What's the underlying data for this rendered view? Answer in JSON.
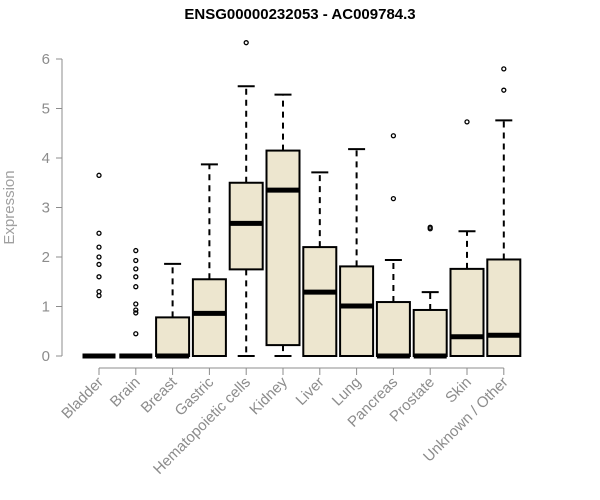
{
  "chart_data": {
    "type": "box",
    "title": "ENSG00000232053 - AC009784.3",
    "ylabel": "Expression",
    "xlabel": "",
    "ylim": [
      0,
      6
    ],
    "yticks": [
      0,
      1,
      2,
      3,
      4,
      5,
      6
    ],
    "grid": false,
    "colors": {
      "box_fill": "#ede6cf",
      "stroke": "#000000",
      "axis": "#8c8c8c"
    },
    "boxes": [
      {
        "category": "Bladder",
        "whisker_low": 0,
        "q1": 0,
        "median": 0,
        "q3": 0,
        "whisker_high": 0,
        "outliers": [
          3.65,
          2.48,
          2.2,
          2.0,
          1.85,
          1.6,
          1.3,
          1.22
        ]
      },
      {
        "category": "Brain",
        "whisker_low": 0,
        "q1": 0,
        "median": 0,
        "q3": 0,
        "whisker_high": 0,
        "outliers": [
          2.13,
          1.93,
          1.76,
          1.6,
          1.4,
          1.05,
          0.93,
          0.87,
          0.45
        ]
      },
      {
        "category": "Breast",
        "whisker_low": 0,
        "q1": 0,
        "median": 0,
        "q3": 0.78,
        "whisker_high": 1.86,
        "outliers": []
      },
      {
        "category": "Gastric",
        "whisker_low": 0,
        "q1": 0,
        "median": 0.86,
        "q3": 1.55,
        "whisker_high": 3.87,
        "outliers": []
      },
      {
        "category": "Hematopoietic cells",
        "whisker_low": 0,
        "q1": 1.75,
        "median": 2.68,
        "q3": 3.5,
        "whisker_high": 5.45,
        "outliers": [
          6.33
        ]
      },
      {
        "category": "Kidney",
        "whisker_low": 0,
        "q1": 0.22,
        "median": 3.35,
        "q3": 4.15,
        "whisker_high": 5.28,
        "outliers": []
      },
      {
        "category": "Liver",
        "whisker_low": 0,
        "q1": 0,
        "median": 1.29,
        "q3": 2.2,
        "whisker_high": 3.71,
        "outliers": []
      },
      {
        "category": "Lung",
        "whisker_low": 0,
        "q1": 0,
        "median": 1.01,
        "q3": 1.81,
        "whisker_high": 4.18,
        "outliers": []
      },
      {
        "category": "Pancreas",
        "whisker_low": 0,
        "q1": 0,
        "median": 0,
        "q3": 1.09,
        "whisker_high": 1.94,
        "outliers": [
          4.45,
          3.18
        ]
      },
      {
        "category": "Prostate",
        "whisker_low": 0,
        "q1": 0,
        "median": 0,
        "q3": 0.93,
        "whisker_high": 1.29,
        "outliers": [
          2.6,
          2.57
        ]
      },
      {
        "category": "Skin",
        "whisker_low": 0,
        "q1": 0,
        "median": 0.39,
        "q3": 1.76,
        "whisker_high": 2.52,
        "outliers": [
          4.73
        ]
      },
      {
        "category": "Unknown / Other",
        "whisker_low": 0,
        "q1": 0,
        "median": 0.42,
        "q3": 1.95,
        "whisker_high": 4.76,
        "outliers": [
          5.8,
          5.37
        ]
      }
    ]
  }
}
